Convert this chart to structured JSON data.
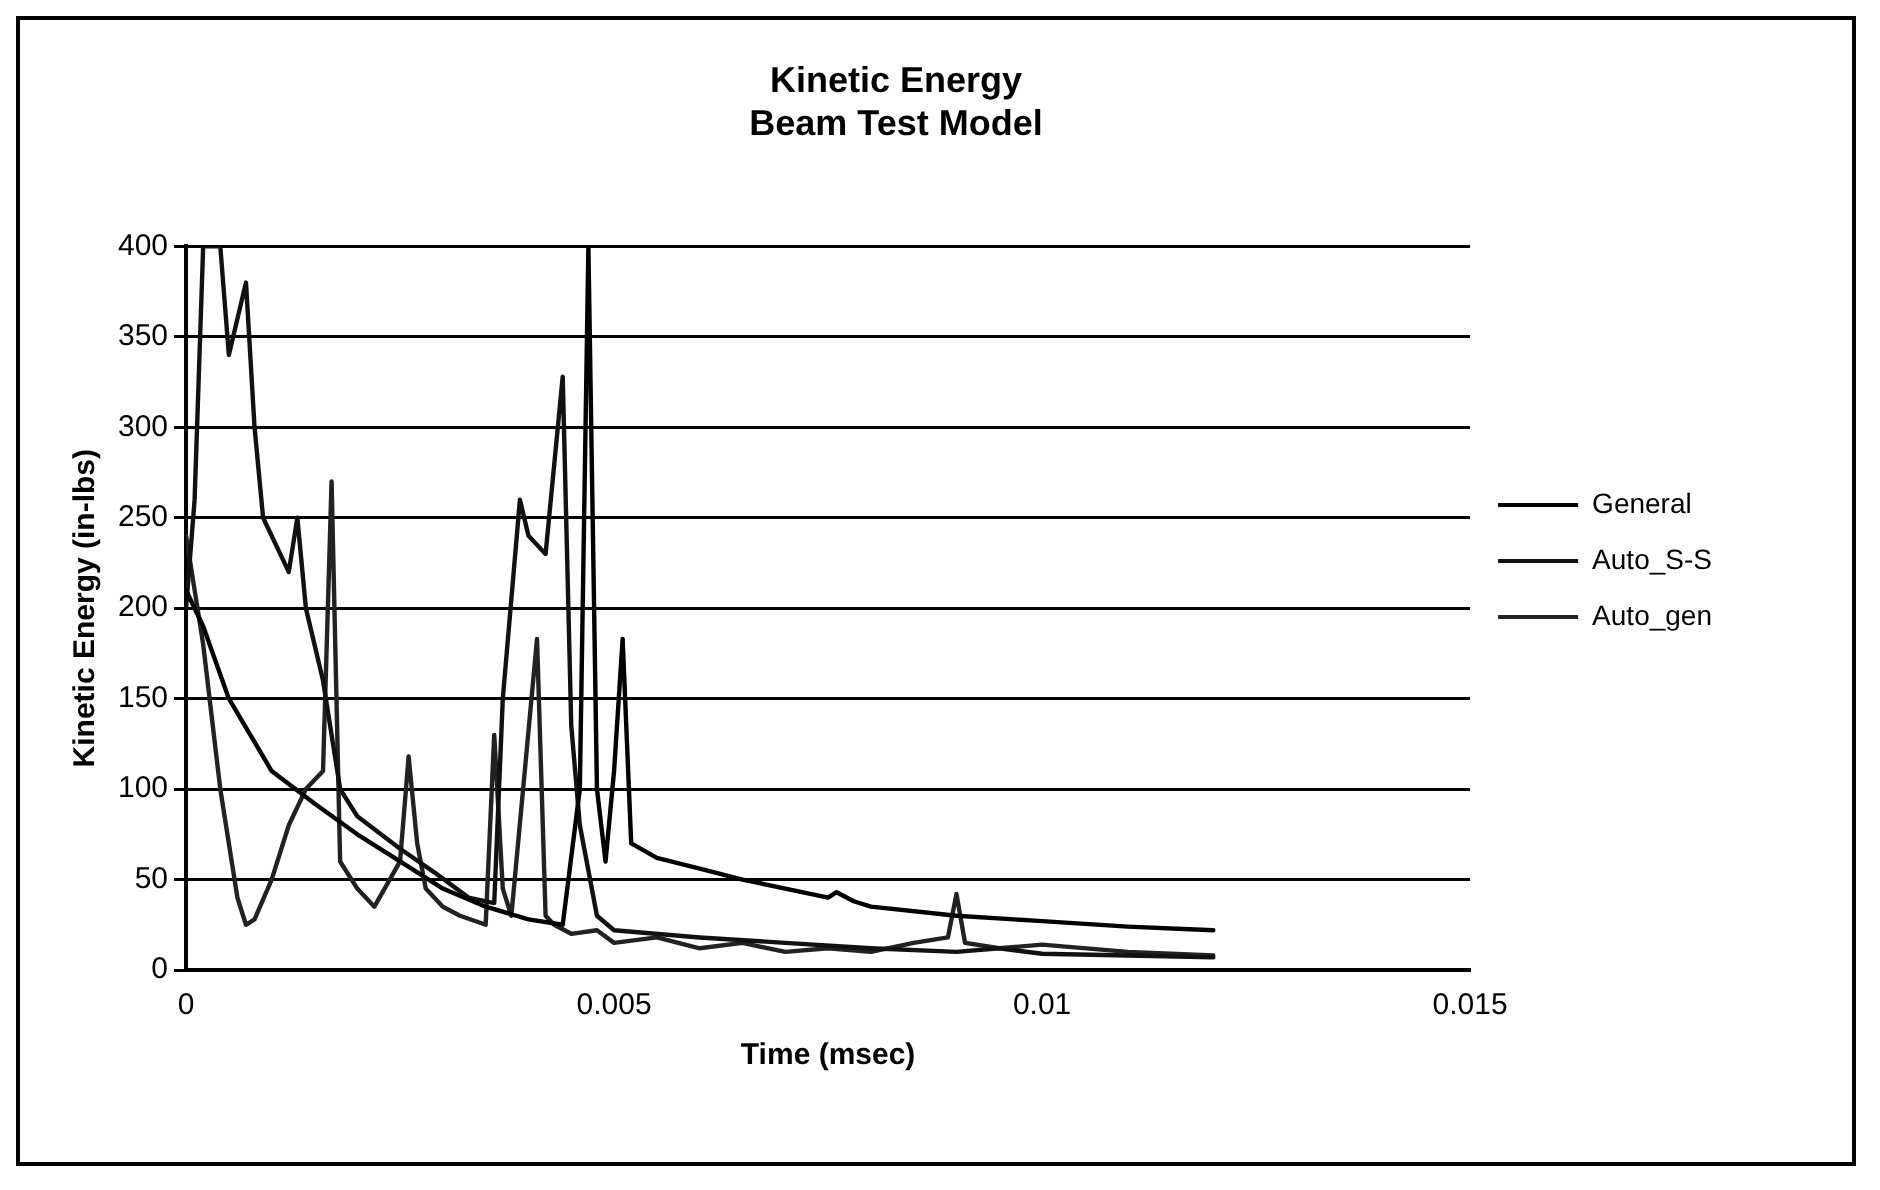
{
  "chart_data": {
    "type": "line",
    "title": "Kinetic Energy",
    "subtitle": "Beam Test Model",
    "xlabel": "Time (msec)",
    "ylabel": "Kinetic Energy (in-lbs)",
    "xlim": [
      0,
      0.015
    ],
    "xticks": [
      0,
      0.005,
      0.01,
      0.015
    ],
    "ylim": [
      0,
      400
    ],
    "yticks": [
      0,
      50,
      100,
      150,
      200,
      250,
      300,
      350,
      400
    ],
    "grid": "y",
    "legend": "right",
    "marker": "none",
    "line_style": "solid",
    "series": [
      {
        "name": "General",
        "color": "#000000",
        "x": [
          0,
          0.0002,
          0.0005,
          0.001,
          0.0015,
          0.002,
          0.0025,
          0.003,
          0.0035,
          0.004,
          0.0044,
          0.0046,
          0.0047,
          0.0048,
          0.0049,
          0.005,
          0.0051,
          0.0052,
          0.0055,
          0.006,
          0.0065,
          0.007,
          0.0075,
          0.0076,
          0.0078,
          0.008,
          0.009,
          0.01,
          0.011,
          0.012
        ],
        "values": [
          210,
          190,
          150,
          110,
          92,
          75,
          60,
          45,
          35,
          28,
          25,
          100,
          400,
          100,
          60,
          110,
          183,
          70,
          62,
          56,
          50,
          45,
          40,
          43,
          38,
          35,
          30,
          27,
          24,
          22
        ]
      },
      {
        "name": "Auto_S-S",
        "color": "#111111",
        "x": [
          0,
          0.0001,
          0.0002,
          0.0004,
          0.0005,
          0.0007,
          0.0008,
          0.0009,
          0.0011,
          0.0012,
          0.0013,
          0.0014,
          0.0016,
          0.0018,
          0.002,
          0.0025,
          0.0029,
          0.0033,
          0.0036,
          0.0037,
          0.0039,
          0.004,
          0.0042,
          0.0044,
          0.0045,
          0.0046,
          0.0048,
          0.005,
          0.006,
          0.007,
          0.008,
          0.009,
          0.0095,
          0.01,
          0.011,
          0.012
        ],
        "values": [
          200,
          260,
          400,
          400,
          340,
          380,
          300,
          250,
          230,
          220,
          250,
          200,
          160,
          100,
          85,
          67,
          54,
          40,
          37,
          150,
          260,
          240,
          230,
          328,
          135,
          80,
          30,
          22,
          18,
          15,
          12,
          10,
          12,
          9,
          8,
          7
        ]
      },
      {
        "name": "Auto_gen",
        "color": "#222222",
        "x": [
          0,
          0.0002,
          0.0004,
          0.0006,
          0.0007,
          0.0008,
          0.001,
          0.0012,
          0.0014,
          0.0016,
          0.0017,
          0.0018,
          0.002,
          0.0022,
          0.0025,
          0.0026,
          0.0027,
          0.0028,
          0.003,
          0.0032,
          0.0035,
          0.0036,
          0.0037,
          0.0038,
          0.0041,
          0.0042,
          0.0043,
          0.0045,
          0.0048,
          0.005,
          0.0055,
          0.006,
          0.0065,
          0.007,
          0.0075,
          0.008,
          0.0085,
          0.0089,
          0.009,
          0.0091,
          0.0095,
          0.01,
          0.011,
          0.012
        ],
        "values": [
          240,
          180,
          100,
          40,
          25,
          28,
          50,
          80,
          100,
          110,
          270,
          60,
          45,
          35,
          60,
          118,
          70,
          45,
          35,
          30,
          25,
          130,
          45,
          30,
          183,
          30,
          25,
          20,
          22,
          15,
          18,
          12,
          15,
          10,
          12,
          10,
          15,
          18,
          42,
          15,
          12,
          14,
          10,
          8
        ]
      }
    ]
  }
}
